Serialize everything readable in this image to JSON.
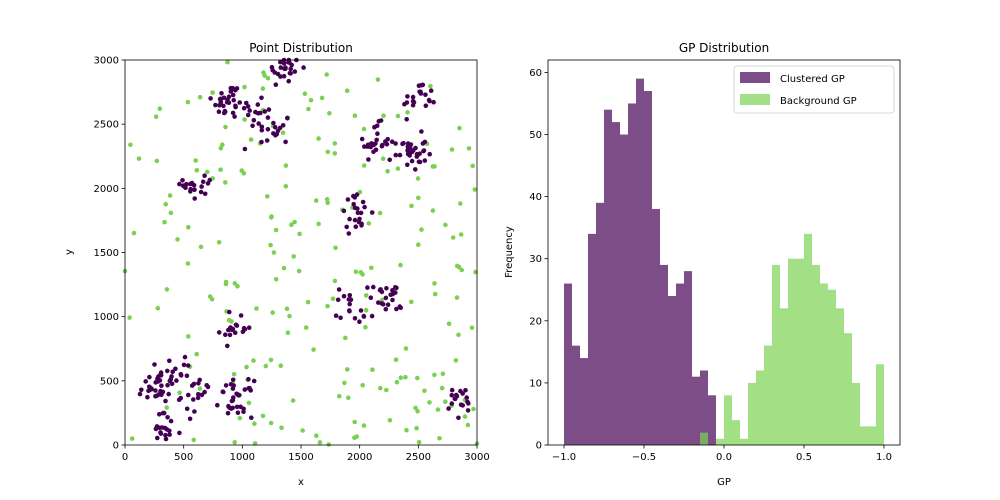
{
  "chart_data": [
    {
      "type": "scatter",
      "title": "Point Distribution",
      "xlabel": "x",
      "ylabel": "y",
      "xlim": [
        0,
        3000
      ],
      "ylim": [
        0,
        3000
      ],
      "xticks": [
        "0",
        "500",
        "1000",
        "1500",
        "2000",
        "2500",
        "3000"
      ],
      "yticks": [
        "0",
        "500",
        "1000",
        "1500",
        "2000",
        "2500",
        "3000"
      ],
      "grid": false,
      "cluster_color": "#440154",
      "background_color": "#7ad151",
      "cluster_centers": [
        {
          "x": 1360,
          "y": 2930,
          "n": 25
        },
        {
          "x": 880,
          "y": 2680,
          "n": 30
        },
        {
          "x": 1130,
          "y": 2600,
          "n": 15
        },
        {
          "x": 1270,
          "y": 2460,
          "n": 18
        },
        {
          "x": 2510,
          "y": 2700,
          "n": 20
        },
        {
          "x": 2120,
          "y": 2360,
          "n": 22
        },
        {
          "x": 2430,
          "y": 2280,
          "n": 35
        },
        {
          "x": 640,
          "y": 2030,
          "n": 20
        },
        {
          "x": 1960,
          "y": 1810,
          "n": 22
        },
        {
          "x": 950,
          "y": 910,
          "n": 18
        },
        {
          "x": 1930,
          "y": 1090,
          "n": 18
        },
        {
          "x": 2220,
          "y": 1130,
          "n": 22
        },
        {
          "x": 260,
          "y": 450,
          "n": 30
        },
        {
          "x": 430,
          "y": 560,
          "n": 18
        },
        {
          "x": 620,
          "y": 380,
          "n": 16
        },
        {
          "x": 950,
          "y": 360,
          "n": 32
        },
        {
          "x": 340,
          "y": 110,
          "n": 18
        },
        {
          "x": 2860,
          "y": 330,
          "n": 18
        }
      ],
      "background_points": 220
    },
    {
      "type": "histogram",
      "title": "GP Distribution",
      "xlabel": "GP",
      "ylabel": "Frequency",
      "xlim": [
        -1.1,
        1.1
      ],
      "ylim": [
        0,
        62
      ],
      "xticks": [
        "−1.0",
        "−0.5",
        "0.0",
        "0.5",
        "1.0"
      ],
      "yticks": [
        "0",
        "10",
        "20",
        "30",
        "40",
        "50",
        "60"
      ],
      "bin_start": -1.0,
      "bin_width": 0.05,
      "legend_position": "upper-right",
      "series": [
        {
          "name": "Clustered GP",
          "color": "#440154",
          "opacity": 0.7,
          "counts": [
            26,
            16,
            14,
            34,
            39,
            54,
            52,
            50,
            55,
            59,
            57,
            38,
            29,
            24,
            26,
            28,
            11,
            12,
            8,
            0,
            0,
            0,
            0,
            0,
            0,
            0,
            0,
            0,
            0,
            0,
            0,
            0,
            0,
            0,
            0,
            0,
            0,
            0,
            0,
            0
          ]
        },
        {
          "name": "Background GP",
          "color": "#7ad151",
          "opacity": 0.7,
          "counts": [
            0,
            0,
            0,
            0,
            0,
            0,
            0,
            0,
            0,
            0,
            0,
            0,
            0,
            0,
            0,
            0,
            0,
            2,
            0,
            1,
            8,
            4,
            1,
            10,
            12,
            16,
            29,
            22,
            30,
            30,
            34,
            29,
            26,
            25,
            22,
            18,
            10,
            3,
            3,
            13
          ]
        }
      ]
    }
  ]
}
